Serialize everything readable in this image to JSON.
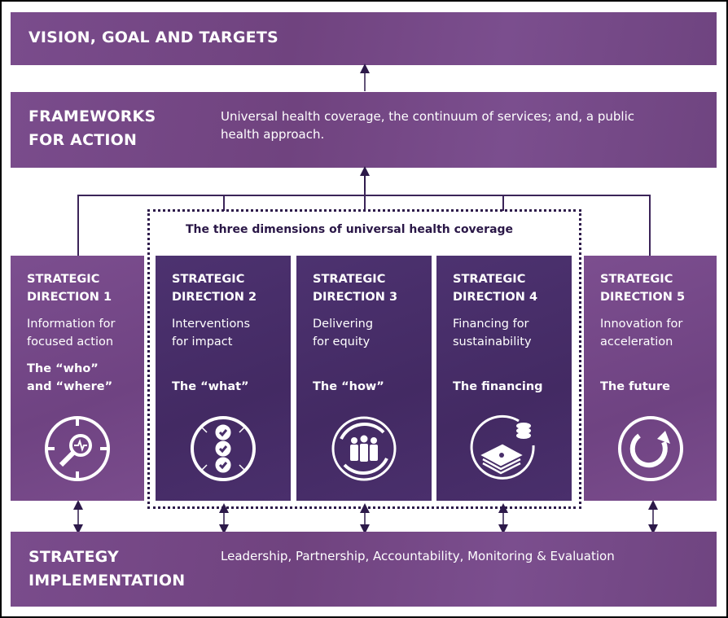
{
  "vision": {
    "title": "VISION, GOAL AND TARGETS"
  },
  "frameworks": {
    "title_line1": "FRAMEWORKS",
    "title_line2": "FOR ACTION",
    "description": "Universal health coverage, the continuum of services; and, a public health approach."
  },
  "dimensions_label": "The three dimensions of universal health coverage",
  "directions": [
    {
      "heading1": "STRATEGIC",
      "heading2": "DIRECTION 1",
      "sub1": "Information for",
      "sub2": "focused action",
      "tag1": "The “who”",
      "tag2": "and “where”",
      "icon": "magnifier-target-icon",
      "color": "#774a8a"
    },
    {
      "heading1": "STRATEGIC",
      "heading2": "DIRECTION 2",
      "sub1": "Interventions",
      "sub2": "for impact",
      "tag1": "The “what”",
      "tag2": "",
      "icon": "checklist-icon",
      "color": "#482e6a"
    },
    {
      "heading1": "STRATEGIC",
      "heading2": "DIRECTION 3",
      "sub1": "Delivering",
      "sub2": "for equity",
      "tag1": "The “how”",
      "tag2": "",
      "icon": "people-cycle-icon",
      "color": "#482e6a"
    },
    {
      "heading1": "STRATEGIC",
      "heading2": "DIRECTION 4",
      "sub1": "Financing for",
      "sub2": "sustainability",
      "tag1": "The financing",
      "tag2": "",
      "icon": "money-stack-icon",
      "color": "#482e6a"
    },
    {
      "heading1": "STRATEGIC",
      "heading2": "DIRECTION 5",
      "sub1": "Innovation for",
      "sub2": "acceleration",
      "tag1": "The future",
      "tag2": "",
      "icon": "circular-arrow-icon",
      "color": "#774a8a"
    }
  ],
  "implementation": {
    "title_line1": "STRATEGY",
    "title_line2": "IMPLEMENTATION",
    "description": "Leadership, Partnership, Accountability, Monitoring & Evaluation"
  }
}
